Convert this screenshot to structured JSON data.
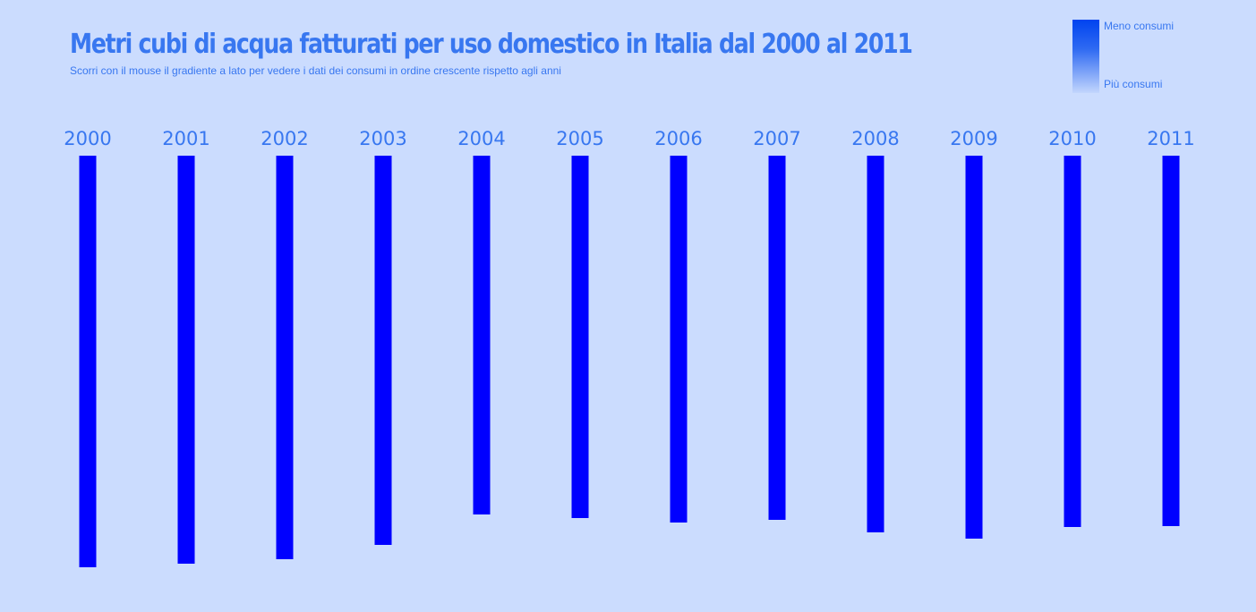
{
  "header": {
    "title": "Metri cubi di acqua fatturati per uso domestico in Italia dal 2000 al 2011",
    "subtitle": "Scorri con il mouse il gradiente a lato per vedere i dati dei consumi in ordine crescente rispetto agli anni"
  },
  "legend": {
    "top_label": "Meno consumi",
    "bottom_label": "Più consumi",
    "gradient_colors": [
      "#0043f0",
      "#c3d6fd"
    ]
  },
  "colors": {
    "background": "#cbdcfe",
    "accent_text": "#3877f0",
    "bar": "#0000ff"
  },
  "chart_data": {
    "type": "bar",
    "categories": [
      "2000",
      "2001",
      "2002",
      "2003",
      "2004",
      "2005",
      "2006",
      "2007",
      "2008",
      "2009",
      "2010",
      "2011"
    ],
    "values": [
      460,
      456,
      451,
      435,
      401,
      405,
      410,
      407,
      421,
      428,
      415,
      414
    ],
    "title": "Metri cubi di acqua fatturati per uso domestico in Italia dal 2000 al 2011",
    "xlabel": "",
    "ylabel": "",
    "ylim": [
      0,
      460
    ],
    "orientation": "vertical-downward",
    "grid": false,
    "legend_placement": "top-right"
  }
}
